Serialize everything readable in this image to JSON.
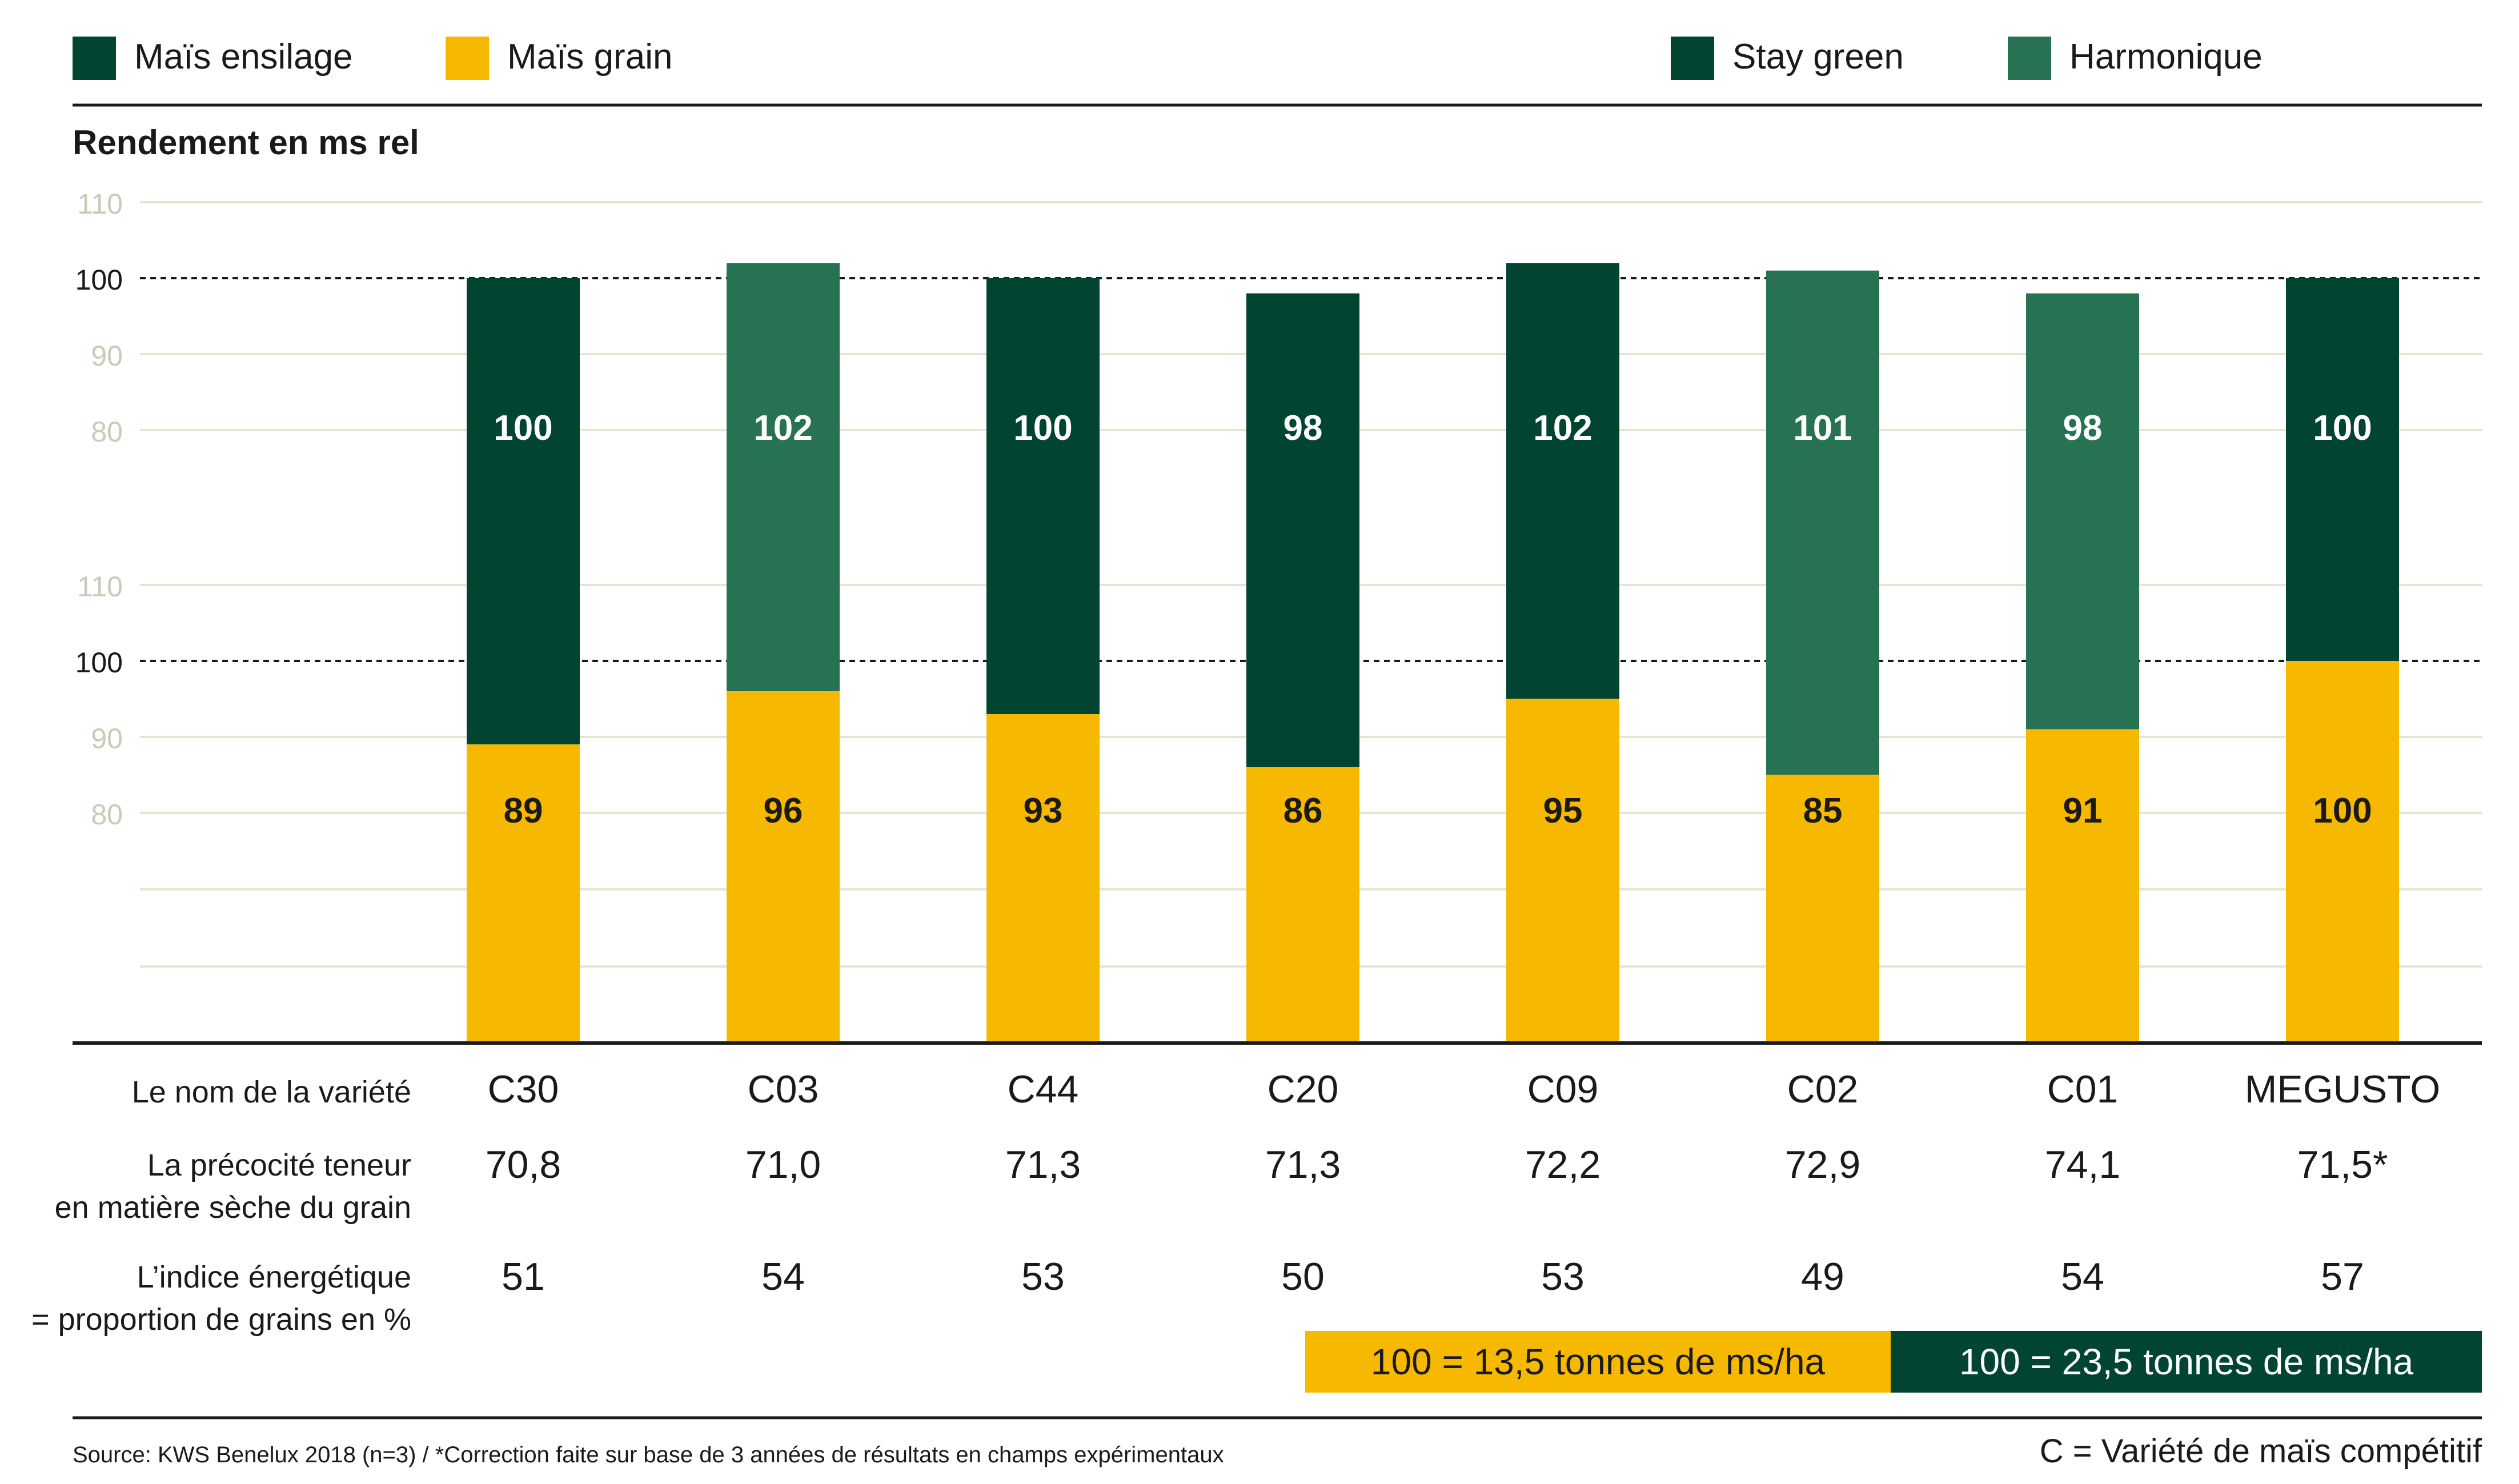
{
  "legend": {
    "left": [
      {
        "label": "Maïs ensilage",
        "color": "#004431"
      },
      {
        "label": "Maïs grain",
        "color": "#f6b900"
      }
    ],
    "right": [
      {
        "label": "Stay green",
        "color": "#004431"
      },
      {
        "label": "Harmonique",
        "color": "#267252"
      }
    ]
  },
  "chart_data": {
    "type": "bar",
    "title": "Rendement en ms rel",
    "categories": [
      "C30",
      "C03",
      "C44",
      "C20",
      "C09",
      "C02",
      "C01",
      "MEGUSTO"
    ],
    "upper_axis": {
      "ticks": [
        "110",
        "100",
        "90",
        "80"
      ],
      "values": [
        110,
        100,
        90,
        80
      ]
    },
    "lower_axis": {
      "ticks": [
        "110",
        "100",
        "90",
        "80"
      ],
      "values": [
        110,
        100,
        90,
        80
      ]
    },
    "series": [
      {
        "name": "Maïs ensilage",
        "values": [
          100,
          102,
          100,
          98,
          102,
          101,
          98,
          100
        ],
        "labels": [
          "100",
          "102",
          "100",
          "98",
          "102",
          "101",
          "98",
          "100"
        ],
        "colors": [
          "#004431",
          "#267252",
          "#004431",
          "#004431",
          "#004431",
          "#267252",
          "#267252",
          "#004431"
        ]
      },
      {
        "name": "Maïs grain",
        "values": [
          89,
          96,
          93,
          86,
          95,
          85,
          91,
          100
        ],
        "labels": [
          "89",
          "96",
          "93",
          "86",
          "95",
          "85",
          "91",
          "100"
        ],
        "color": "#f6b900"
      }
    ],
    "reference_value": 100,
    "grid": true
  },
  "table": {
    "rows": [
      {
        "label": [
          "Le nom de la variété"
        ],
        "values": [
          "C30",
          "C03",
          "C44",
          "C20",
          "C09",
          "C02",
          "C01",
          "MEGUSTO"
        ]
      },
      {
        "label": [
          "La précocité teneur",
          "en matière sèche du grain"
        ],
        "values": [
          "70,8",
          "71,0",
          "71,3",
          "71,3",
          "72,2",
          "72,9",
          "74,1",
          "71,5*"
        ]
      },
      {
        "label": [
          "L’indice énergétique",
          "= proportion de grains en %"
        ],
        "values": [
          "51",
          "54",
          "53",
          "50",
          "53",
          "49",
          "54",
          "57"
        ]
      }
    ]
  },
  "reference_boxes": [
    {
      "text": "100 = 13,5 tonnes de ms/ha",
      "color": "#f6b900",
      "text_color": "#1a1a1a"
    },
    {
      "text": "100 = 23,5 tonnes de ms/ha",
      "color": "#004431",
      "text_color": "#ffffff"
    }
  ],
  "footer": {
    "source": "Source: KWS Benelux 2018 (n=3) / *Correction faite sur base de 3 années de résultats en champs expérimentaux",
    "note": "C = Variété de maïs compétitif"
  }
}
